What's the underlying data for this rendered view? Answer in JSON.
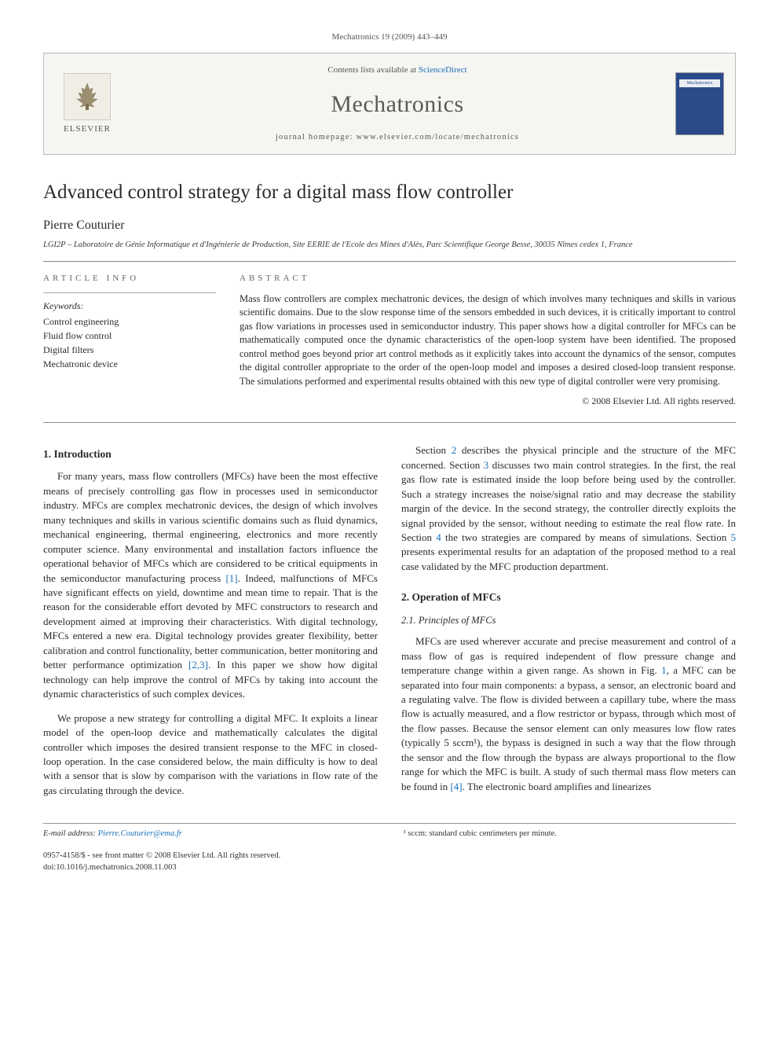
{
  "header": {
    "citation": "Mechatronics 19 (2009) 443–449"
  },
  "banner": {
    "publisher": "ELSEVIER",
    "contents_prefix": "Contents lists available at ",
    "contents_link": "ScienceDirect",
    "journal": "Mechatronics",
    "homepage": "journal homepage: www.elsevier.com/locate/mechatronics"
  },
  "article": {
    "title": "Advanced control strategy for a digital mass flow controller",
    "author": "Pierre Couturier",
    "affiliation": "LGI2P – Laboratoire de Génie Informatique et d'Ingénierie de Production, Site EERIE de l'Ecole des Mines d'Alès, Parc Scientifique George Besse, 30035 Nîmes cedex 1, France"
  },
  "info": {
    "label": "ARTICLE INFO",
    "keywords_label": "Keywords:",
    "keywords": [
      "Control engineering",
      "Fluid flow control",
      "Digital filters",
      "Mechatronic device"
    ]
  },
  "abstract": {
    "label": "ABSTRACT",
    "text": "Mass flow controllers are complex mechatronic devices, the design of which involves many techniques and skills in various scientific domains. Due to the slow response time of the sensors embedded in such devices, it is critically important to control gas flow variations in processes used in semiconductor industry. This paper shows how a digital controller for MFCs can be mathematically computed once the dynamic characteristics of the open-loop system have been identified. The proposed control method goes beyond prior art control methods as it explicitly takes into account the dynamics of the sensor, computes the digital controller appropriate to the order of the open-loop model and imposes a desired closed-loop transient response. The simulations performed and experimental results obtained with this new type of digital controller were very promising.",
    "copyright": "© 2008 Elsevier Ltd. All rights reserved."
  },
  "body": {
    "intro_heading": "1. Introduction",
    "intro_p1": "For many years, mass flow controllers (MFCs) have been the most effective means of precisely controlling gas flow in processes used in semiconductor industry. MFCs are complex mechatronic devices, the design of which involves many techniques and skills in various scientific domains such as fluid dynamics, mechanical engineering, thermal engineering, electronics and more recently computer science. Many environmental and installation factors influence the operational behavior of MFCs which are considered to be critical equipments in the semiconductor manufacturing process [1]. Indeed, malfunctions of MFCs have significant effects on yield, downtime and mean time to repair. That is the reason for the considerable effort devoted by MFC constructors to research and development aimed at improving their characteristics. With digital technology, MFCs entered a new era. Digital technology provides greater flexibility, better calibration and control functionality, better communication, better monitoring and better performance optimization [2,3]. In this paper we show how digital technology can help improve the control of MFCs by taking into account the dynamic characteristics of such complex devices.",
    "intro_p2": "We propose a new strategy for controlling a digital MFC. It exploits a linear model of the open-loop device and mathematically calculates the digital controller which imposes the desired transient response to the MFC in closed-loop operation. In the case considered below, the main difficulty is how to deal with a sensor that is slow by comparison with the variations in flow rate of the gas circulating through the device.",
    "intro_p3": "Section 2 describes the physical principle and the structure of the MFC concerned. Section 3 discusses two main control strategies. In the first, the real gas flow rate is estimated inside the loop before being used by the controller. Such a strategy increases the noise/signal ratio and may decrease the stability margin of the device. In the second strategy, the controller directly exploits the signal provided by the sensor, without needing to estimate the real flow rate. In Section 4 the two strategies are compared by means of simulations. Section 5 presents experimental results for an adaptation of the proposed method to a real case validated by the MFC production department.",
    "op_heading": "2. Operation of MFCs",
    "principles_heading": "2.1. Principles of MFCs",
    "principles_p1": "MFCs are used wherever accurate and precise measurement and control of a mass flow of gas is required independent of flow pressure change and temperature change within a given range. As shown in Fig. 1, a MFC can be separated into four main components: a bypass, a sensor, an electronic board and a regulating valve. The flow is divided between a capillary tube, where the mass flow is actually measured, and a flow restrictor or bypass, through which most of the flow passes. Because the sensor element can only measures low flow rates (typically 5 sccm¹), the bypass is designed in such a way that the flow through the sensor and the flow through the bypass are always proportional to the flow range for which the MFC is built. A study of such thermal mass flow meters can be found in [4]. The electronic board amplifies and linearizes"
  },
  "footer": {
    "email_label": "E-mail address: ",
    "email": "Pierre.Couturier@ema.fr",
    "footnote1": "¹ sccm: standard cubic centimeters per minute.",
    "issn_line": "0957-4158/$ - see front matter © 2008 Elsevier Ltd. All rights reserved.",
    "doi_line": "doi:10.1016/j.mechatronics.2008.11.003"
  },
  "colors": {
    "link": "#1a6fb8",
    "text": "#2a2a2a",
    "light_text": "#555555",
    "rule": "#888888",
    "banner_bg": "#f5f5f2",
    "cover": "#2a4a8a"
  }
}
